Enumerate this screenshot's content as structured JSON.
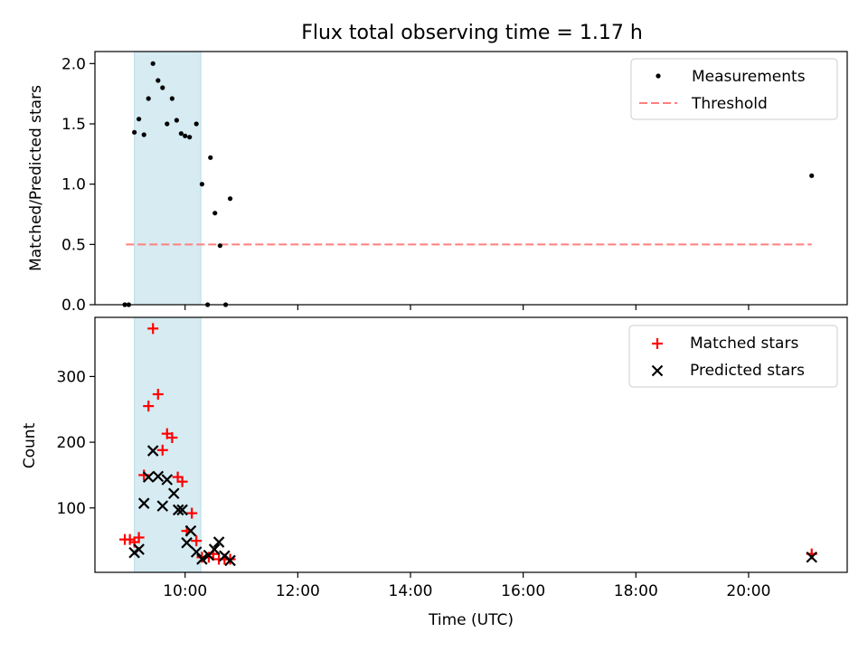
{
  "chart_data": {
    "title": "Flux total observing time = 1.17 h",
    "xlabel": "Time (UTC)",
    "xlim": [
      8.4,
      21.75
    ],
    "xticks": [
      10,
      12,
      14,
      16,
      18,
      20
    ],
    "xtick_labels": [
      "10:00",
      "12:00",
      "14:00",
      "16:00",
      "18:00",
      "20:00"
    ],
    "span": [
      9.1,
      10.28
    ],
    "span_color": "#add8e6",
    "top": {
      "type": "scatter",
      "ylabel": "Matched/Predicted stars",
      "ylim": [
        0,
        2.1
      ],
      "yticks": [
        0.0,
        0.5,
        1.0,
        1.5,
        2.0
      ],
      "ytick_labels": [
        "0.0",
        "0.5",
        "1.0",
        "1.5",
        "2.0"
      ],
      "legend": {
        "position": "top-right",
        "measurements_label": "Measurements",
        "threshold_label": "Threshold"
      },
      "measurements": {
        "name": "Measurements",
        "color": "#000000",
        "x": [
          8.93,
          9.0,
          9.1,
          9.18,
          9.27,
          9.35,
          9.43,
          9.52,
          9.6,
          9.68,
          9.77,
          9.85,
          9.93,
          10.0,
          10.08,
          10.2,
          10.3,
          10.4,
          10.45,
          10.53,
          10.62,
          10.72,
          10.8,
          21.12
        ],
        "y": [
          0.0,
          0.0,
          1.43,
          1.54,
          1.41,
          1.71,
          2.0,
          1.86,
          1.8,
          1.5,
          1.71,
          1.53,
          1.42,
          1.4,
          1.39,
          1.5,
          1.0,
          0.0,
          1.22,
          0.76,
          0.49,
          0.0,
          0.88,
          1.07
        ]
      },
      "threshold": {
        "name": "Threshold",
        "color": "#ff7f7f",
        "x": [
          8.95,
          21.12
        ],
        "y": 0.5
      }
    },
    "bottom": {
      "type": "scatter",
      "ylabel": "Count",
      "ylim": [
        2,
        390
      ],
      "yticks": [
        100,
        200,
        300
      ],
      "ytick_labels": [
        "100",
        "200",
        "300"
      ],
      "legend": {
        "position": "top-right",
        "matched_label": "Matched stars",
        "predicted_label": "Predicted stars"
      },
      "matched": {
        "name": "Matched stars",
        "color": "#ff0000",
        "x": [
          8.93,
          9.02,
          9.1,
          9.18,
          9.27,
          9.35,
          9.43,
          9.52,
          9.6,
          9.68,
          9.77,
          9.87,
          9.95,
          10.03,
          10.12,
          10.2,
          10.3,
          10.42,
          10.5,
          10.6,
          10.7,
          10.8,
          21.12
        ],
        "y": [
          52,
          52,
          48,
          55,
          150,
          255,
          373,
          273,
          188,
          213,
          207,
          147,
          140,
          65,
          92,
          50,
          25,
          25,
          30,
          22,
          22,
          22,
          30
        ]
      },
      "predicted": {
        "name": "Predicted stars",
        "color": "#000000",
        "x": [
          9.1,
          9.18,
          9.27,
          9.35,
          9.43,
          9.52,
          9.6,
          9.68,
          9.8,
          9.88,
          9.95,
          10.03,
          10.1,
          10.2,
          10.3,
          10.42,
          10.52,
          10.6,
          10.7,
          10.8,
          21.12
        ],
        "y": [
          32,
          37,
          107,
          147,
          187,
          148,
          103,
          143,
          122,
          97,
          97,
          47,
          65,
          33,
          22,
          28,
          37,
          48,
          27,
          20,
          25
        ]
      }
    }
  }
}
